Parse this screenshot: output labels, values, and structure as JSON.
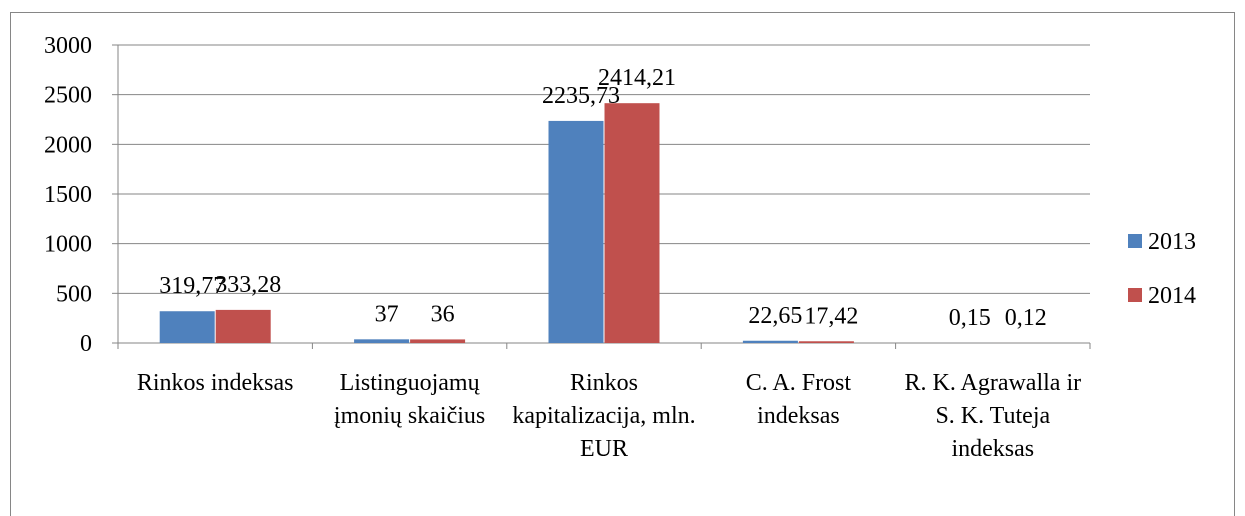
{
  "chart_data": {
    "type": "bar",
    "categories": [
      "Rinkos indeksas",
      "Listinguojamų įmonių skaičius",
      "Rinkos kapitalizacija, mln. EUR",
      "C. A. Frost indeksas",
      "R. K. Agrawalla ir S. K. Tuteja indeksas"
    ],
    "series": [
      {
        "name": "2013",
        "color": "#4f81bd",
        "values": [
          319.77,
          37,
          2235.73,
          22.65,
          0.15
        ],
        "value_labels": [
          "319,77",
          "37",
          "2235,73",
          "22,65",
          "0,15"
        ]
      },
      {
        "name": "2014",
        "color": "#c0504d",
        "values": [
          333.28,
          36,
          2414.21,
          17.42,
          0.12
        ],
        "value_labels": [
          "333,28",
          "36",
          "2414,21",
          "17,42",
          "0,12"
        ]
      }
    ],
    "ylim": [
      0,
      3000
    ],
    "yticks": [
      0,
      500,
      1000,
      1500,
      2000,
      2500,
      3000
    ],
    "grid": true,
    "legend": "right"
  }
}
